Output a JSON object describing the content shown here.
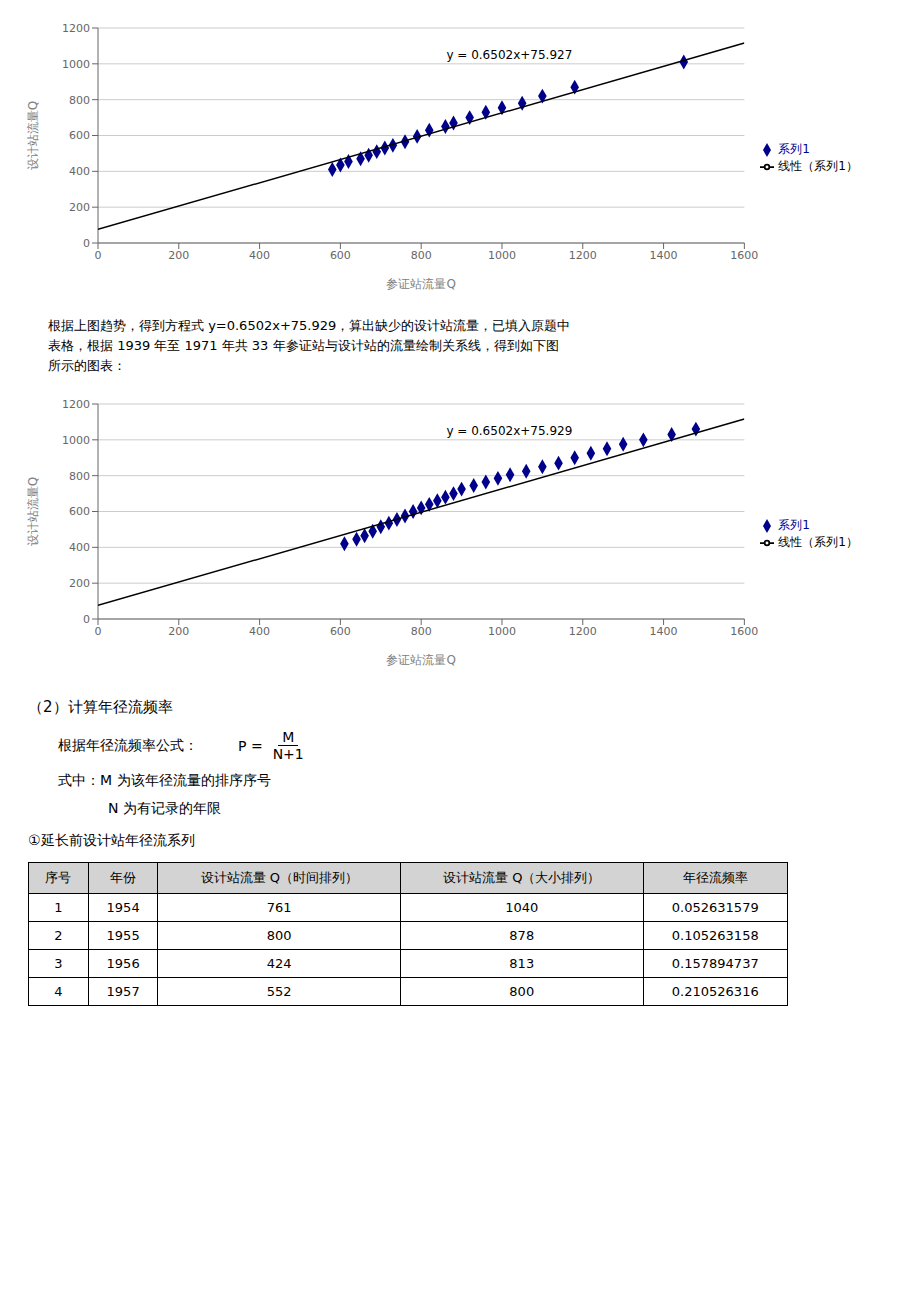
{
  "chart_data": [
    {
      "type": "scatter",
      "xlabel": "参证站流量Q",
      "ylabel": "设计站流量Q",
      "xlim": [
        0,
        1600
      ],
      "ylim": [
        0,
        1200
      ],
      "xticks": [
        0,
        200,
        400,
        600,
        800,
        1000,
        1200,
        1400,
        1600
      ],
      "yticks": [
        0,
        200,
        400,
        600,
        800,
        1000,
        1200
      ],
      "grid": true,
      "legend": "right",
      "annotations": [
        {
          "text": "y = 0.6502x+75.927",
          "x": 850,
          "y": 1050
        }
      ],
      "series": [
        {
          "name": "系列1",
          "type": "scatter",
          "marker": "diamond",
          "color": "#00008B",
          "x": [
            580,
            600,
            620,
            650,
            670,
            690,
            710,
            730,
            760,
            790,
            820,
            860,
            880,
            920,
            960,
            1000,
            1050,
            1100,
            1180,
            1450
          ],
          "values": [
            410,
            435,
            455,
            470,
            490,
            510,
            530,
            545,
            565,
            595,
            630,
            650,
            670,
            700,
            730,
            755,
            780,
            820,
            870,
            1010
          ]
        },
        {
          "name": "线性（系列1）",
          "type": "line",
          "color": "#000000",
          "x": [
            0,
            1600
          ],
          "values": [
            75.927,
            1116.247
          ]
        }
      ]
    },
    {
      "type": "scatter",
      "xlabel": "参证站流量Q",
      "ylabel": "设计站流量Q",
      "xlim": [
        0,
        1600
      ],
      "ylim": [
        0,
        1200
      ],
      "xticks": [
        0,
        200,
        400,
        600,
        800,
        1000,
        1200,
        1400,
        1600
      ],
      "yticks": [
        0,
        200,
        400,
        600,
        800,
        1000,
        1200
      ],
      "grid": true,
      "legend": "right",
      "annotations": [
        {
          "text": "y = 0.6502x+75.929",
          "x": 850,
          "y": 1050
        }
      ],
      "series": [
        {
          "name": "系列1",
          "type": "scatter",
          "marker": "diamond",
          "color": "#00008B",
          "x": [
            610,
            640,
            660,
            680,
            700,
            720,
            740,
            760,
            780,
            800,
            820,
            840,
            860,
            880,
            900,
            930,
            960,
            990,
            1020,
            1060,
            1100,
            1140,
            1180,
            1220,
            1260,
            1300,
            1350,
            1420,
            1480
          ],
          "values": [
            420,
            445,
            465,
            490,
            515,
            535,
            555,
            575,
            600,
            620,
            640,
            660,
            680,
            700,
            725,
            745,
            765,
            785,
            805,
            825,
            850,
            870,
            900,
            925,
            950,
            975,
            1000,
            1030,
            1060
          ]
        },
        {
          "name": "线性（系列1）",
          "type": "line",
          "color": "#000000",
          "x": [
            0,
            1600
          ],
          "values": [
            75.929,
            1116.249
          ]
        }
      ]
    }
  ],
  "text_para_lines": [
    "根据上图趋势，得到方程式 y=0.6502x+75.929，算出缺少的设计站流量，已填入原题中",
    "表格，根据 1939 年至 1971 年共 33 年参证站与设计站的流量绘制关系线，得到如下图",
    "所示的图表："
  ],
  "section_title": "（2）计算年径流频率",
  "formula_text1": "根据年径流频率公式：",
  "formula_lhs": "P =",
  "formula_numerator": "M",
  "formula_denominator": "N+1",
  "formula_desc1": "式中：M 为该年径流量的排序序号",
  "formula_desc2": "N 为有记录的年限",
  "subtitle1": "①延长前设计站年径流系列",
  "table": {
    "headers": [
      "序号",
      "年份",
      "设计站流量 Q（时间排列）",
      "设计站流量 Q（大小排列）",
      "年径流频率"
    ],
    "rows": [
      [
        "1",
        "1954",
        "761",
        "1040",
        "0.052631579"
      ],
      [
        "2",
        "1955",
        "800",
        "878",
        "0.105263158"
      ],
      [
        "3",
        "1956",
        "424",
        "813",
        "0.157894737"
      ],
      [
        "4",
        "1957",
        "552",
        "800",
        "0.210526316"
      ]
    ]
  }
}
